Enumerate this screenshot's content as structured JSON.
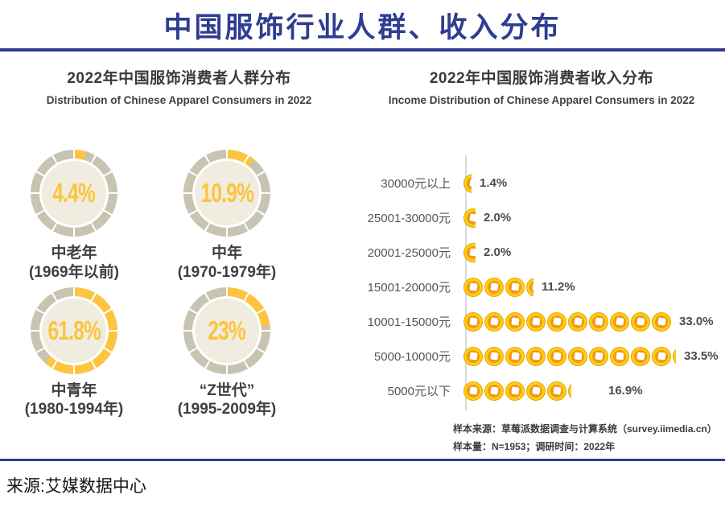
{
  "header": {
    "title": "中国服饰行业人群、收入分布"
  },
  "left_panel": {
    "title": "2022年中国服饰消费者人群分布",
    "subtitle_en": "Distribution of Chinese Apparel Consumers in 2022",
    "groups": [
      {
        "pct_label": "4.4%",
        "value": 4.4,
        "name": "中老年",
        "years": "(1969年以前)"
      },
      {
        "pct_label": "10.9%",
        "value": 10.9,
        "name": "中年",
        "years": "(1970-1979年)"
      },
      {
        "pct_label": "61.8%",
        "value": 61.8,
        "name": "中青年",
        "years": "(1980-1994年)"
      },
      {
        "pct_label": "23%",
        "value": 23.0,
        "name": "“Z世代”",
        "years": "(1995-2009年)"
      }
    ]
  },
  "right_panel": {
    "title": "2022年中国服饰消费者收入分布",
    "subtitle_en": "Income Distribution of Chinese Apparel Consumers in 2022",
    "coin_unit_pct": 3.3,
    "rows": [
      {
        "label": "30000元以上",
        "value": 1.4,
        "pct_label": "1.4%"
      },
      {
        "label": "25001-30000元",
        "value": 2.0,
        "pct_label": "2.0%"
      },
      {
        "label": "20001-25000元",
        "value": 2.0,
        "pct_label": "2.0%"
      },
      {
        "label": "15001-20000元",
        "value": 11.2,
        "pct_label": "11.2%"
      },
      {
        "label": "10001-15000元",
        "value": 33.0,
        "pct_label": "33.0%"
      },
      {
        "label": "5000-10000元",
        "value": 33.5,
        "pct_label": "33.5%"
      },
      {
        "label": "5000元以下",
        "value": 16.9,
        "pct_label": "16.9%"
      }
    ],
    "notes": [
      "样本来源：草莓派数据调查与计算系统（survey.iimedia.cn）",
      "样本量：N=1953；调研时间：2022年"
    ]
  },
  "footer": {
    "source": "来源:艾媒数据中心"
  },
  "colors": {
    "accent_blue": "#2d3d91",
    "gauge_yellow": "#fcc440",
    "gauge_gray": "#c7c4b1",
    "gauge_center": "#f0ecdf",
    "coin_gold": "#ffd00a",
    "coin_orange": "#f0991d",
    "axis_gray": "#dadada"
  },
  "chart_data": [
    {
      "type": "pie",
      "variant": "donut-gauges",
      "title": "2022年中国服饰消费者人群分布",
      "subtitle": "Distribution of Chinese Apparel Consumers in 2022",
      "categories": [
        "中老年 (1969年以前)",
        "中年 (1970-1979年)",
        "中青年 (1980-1994年)",
        "“Z世代” (1995-2009年)"
      ],
      "values": [
        4.4,
        10.9,
        61.8,
        23.0
      ],
      "unit": "%",
      "legend_position": "none"
    },
    {
      "type": "bar",
      "variant": "coin-pictogram-horizontal",
      "title": "2022年中国服饰消费者收入分布",
      "subtitle": "Income Distribution of Chinese Apparel Consumers in 2022",
      "categories": [
        "30000元以上",
        "25001-30000元",
        "20001-25000元",
        "15001-20000元",
        "10001-15000元",
        "5000-10000元",
        "5000元以下"
      ],
      "values": [
        1.4,
        2.0,
        2.0,
        11.2,
        33.0,
        33.5,
        16.9
      ],
      "unit": "%",
      "pct_per_icon": 3.3,
      "xlabel": "",
      "ylabel": "",
      "grid": false,
      "annotations": [
        "样本来源：草莓派数据调查与计算系统（survey.iimedia.cn）",
        "样本量：N=1953；调研时间：2022年"
      ]
    }
  ]
}
